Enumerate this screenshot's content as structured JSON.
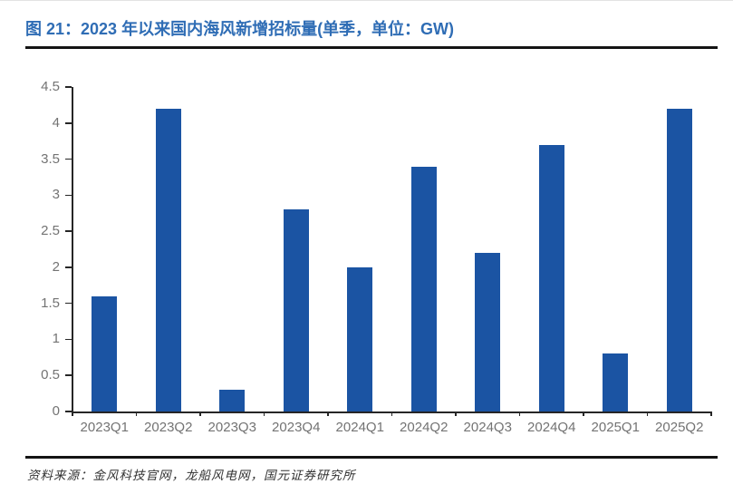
{
  "header": {
    "title": "图 21：2023 年以来国内海风新增招标量(单季，单位：GW)"
  },
  "footer": {
    "source": "资料来源：金风科技官网，龙船风电网，国元证券研究所"
  },
  "colors": {
    "title_text": "#2F6DB5",
    "rule": "#141414",
    "bar": "#1B54A3",
    "axis": "#262626",
    "tick_label": "#737373",
    "source_text": "#333333"
  },
  "chart_data": {
    "type": "bar",
    "title": "图 21：2023 年以来国内海风新增招标量(单季，单位：GW)",
    "categories": [
      "2023Q1",
      "2023Q2",
      "2023Q3",
      "2023Q4",
      "2024Q1",
      "2024Q2",
      "2024Q3",
      "2024Q4",
      "2025Q1",
      "2025Q2"
    ],
    "values": [
      1.6,
      4.2,
      0.3,
      2.8,
      2.0,
      3.4,
      2.2,
      3.7,
      0.8,
      4.2
    ],
    "unit": "GW",
    "xlabel": "",
    "ylabel": "",
    "ylim": [
      0,
      4.5
    ],
    "y_tick_step": 0.5,
    "y_tick_labels": [
      "0",
      "0.5",
      "1",
      "1.5",
      "2",
      "2.5",
      "3",
      "3.5",
      "4",
      "4.5"
    ],
    "grid": false,
    "legend": "none"
  }
}
